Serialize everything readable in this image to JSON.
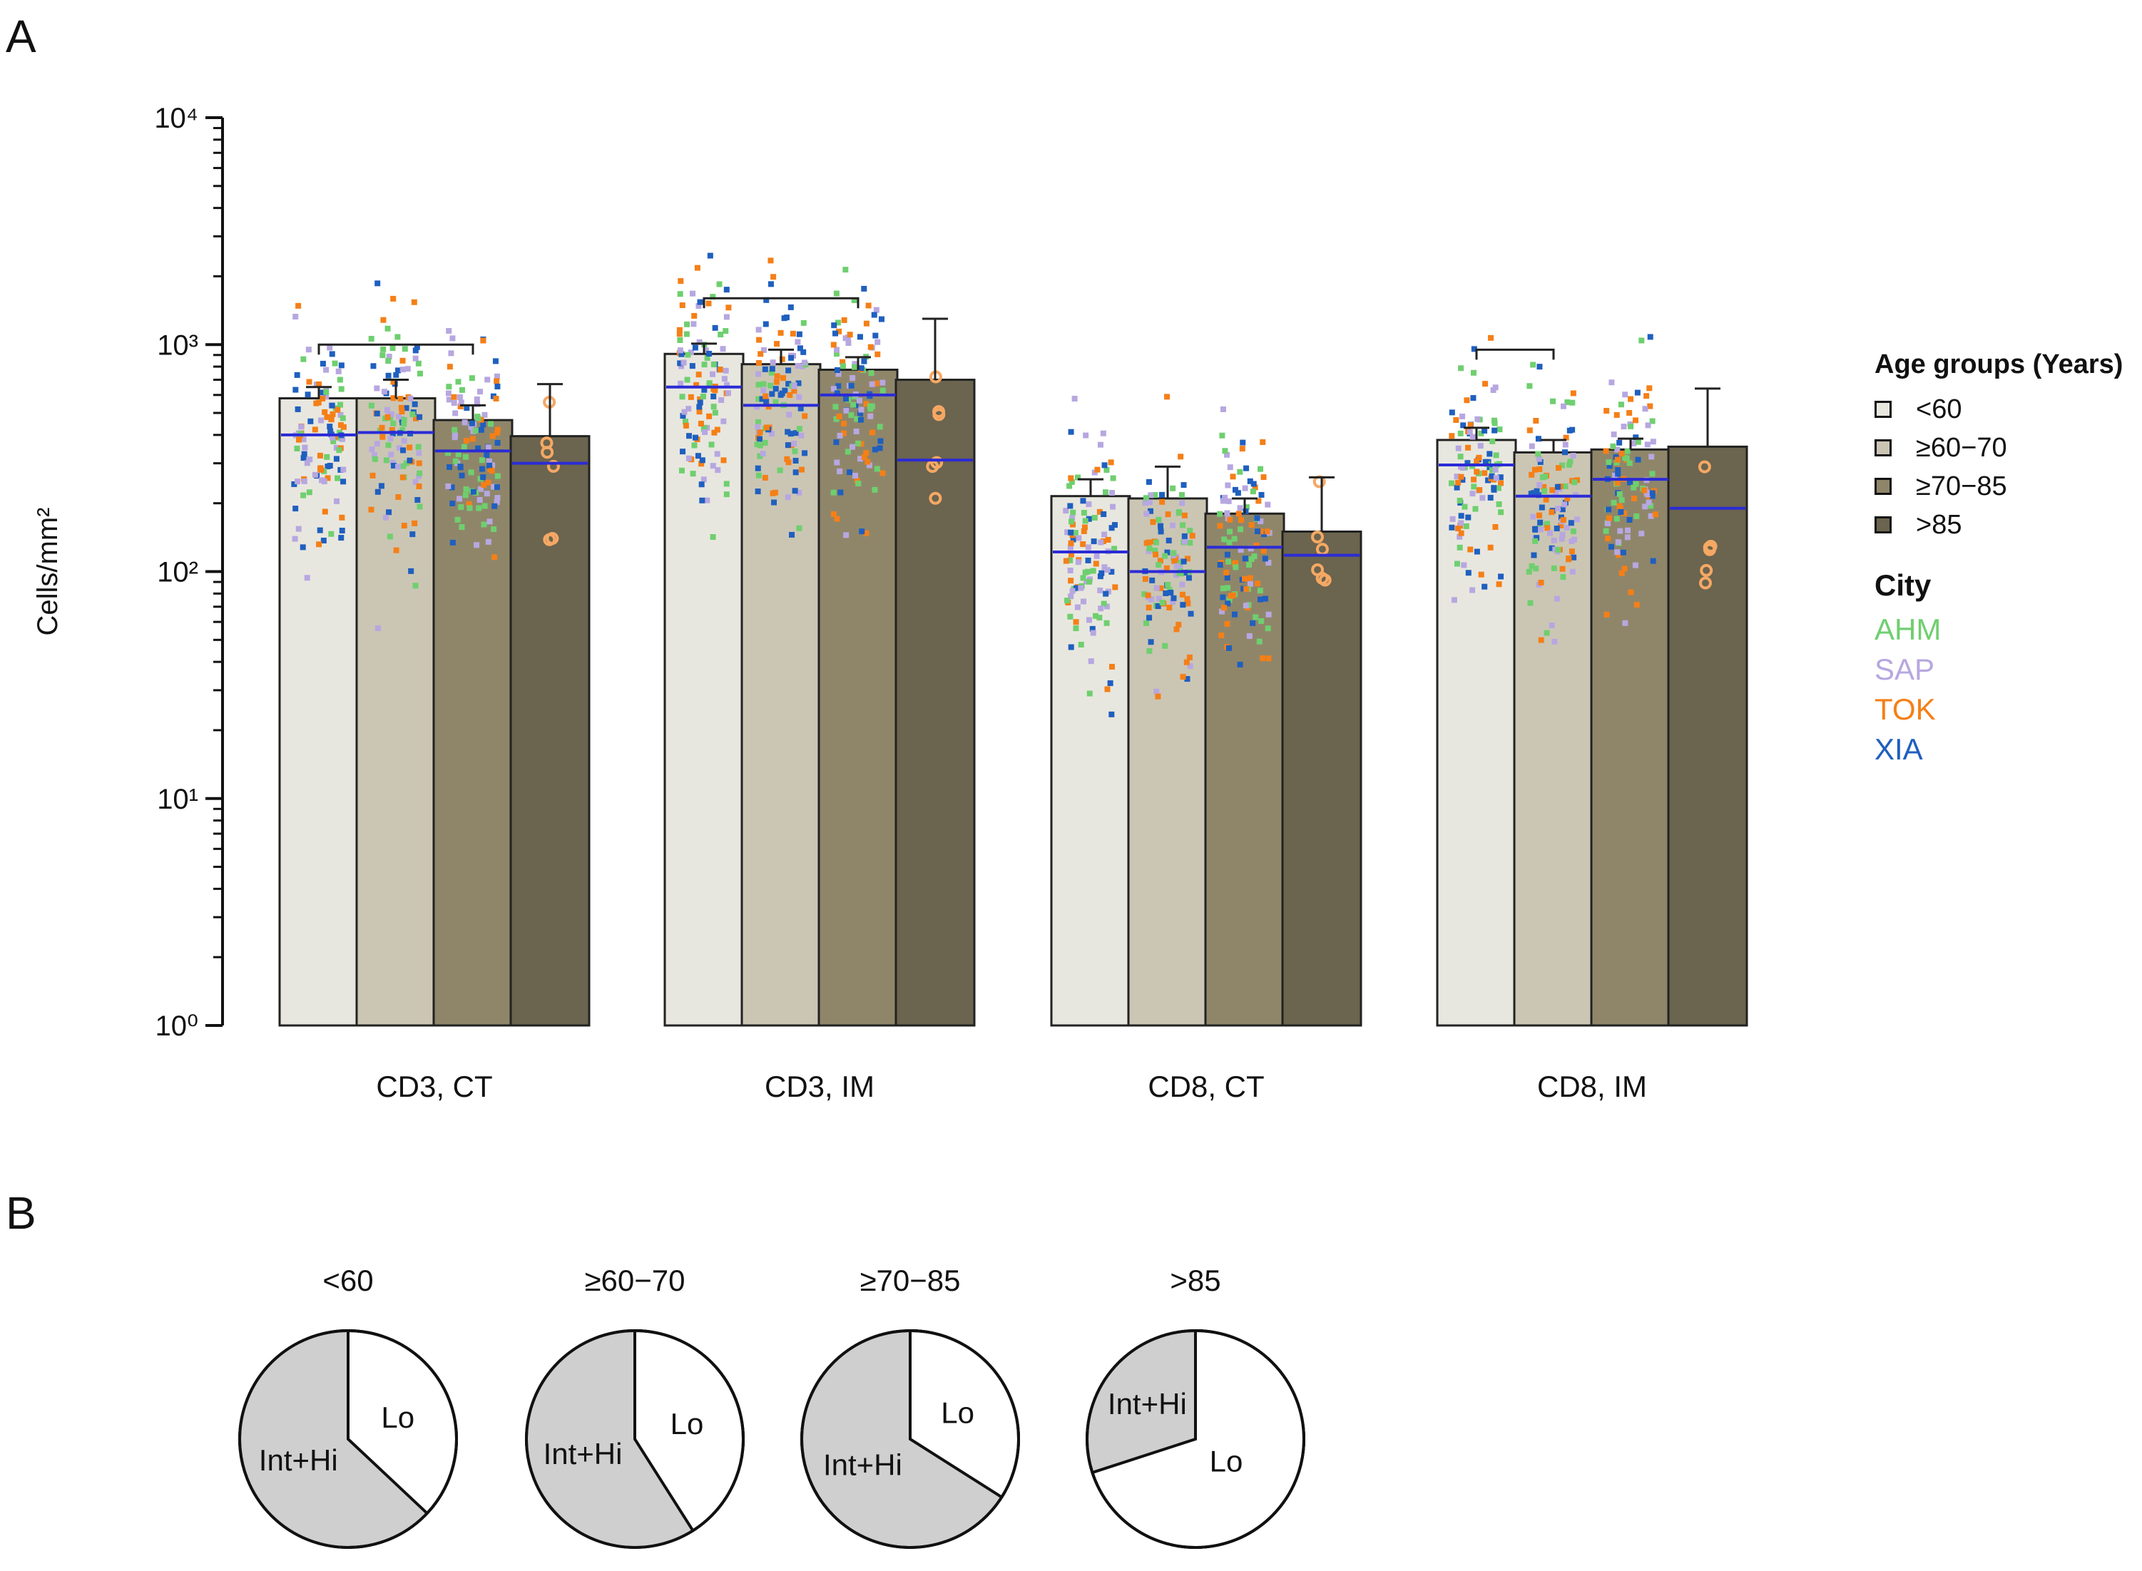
{
  "panel_labels": {
    "a": "A",
    "b": "B"
  },
  "legend": {
    "age_title": "Age groups (Years)",
    "age_groups": [
      {
        "label": "<60",
        "color": "#e8e7df"
      },
      {
        "label": "≥60−70",
        "color": "#cbc6b4"
      },
      {
        "label": "≥70−85",
        "color": "#8f866a"
      },
      {
        "label": ">85",
        "color": "#6b644e"
      }
    ],
    "city_title": "City",
    "cities": [
      {
        "label": "AHM",
        "color": "#6fcf6f"
      },
      {
        "label": "SAP",
        "color": "#b7a7e0"
      },
      {
        "label": "TOK",
        "color": "#f57f17"
      },
      {
        "label": "XIA",
        "color": "#1f5fbf"
      }
    ]
  },
  "chart_data": [
    {
      "type": "bar",
      "scale": "log",
      "ylabel": "Cells/mm²",
      "ylim": [
        1,
        10000
      ],
      "ytick_labels": [
        "10⁰",
        "10¹",
        "10²",
        "10³",
        "10⁴"
      ],
      "categories": [
        "CD3, CT",
        "CD3, IM",
        "CD8, CT",
        "CD8, IM"
      ],
      "series": [
        {
          "name": "<60",
          "values": [
            580,
            910,
            215,
            380
          ],
          "medians": [
            400,
            650,
            122,
            295
          ],
          "error_upper": [
            650,
            1010,
            255,
            430
          ]
        },
        {
          "name": "≥60−70",
          "values": [
            580,
            820,
            210,
            335
          ],
          "medians": [
            410,
            540,
            100,
            215
          ],
          "error_upper": [
            700,
            950,
            290,
            380
          ]
        },
        {
          "name": "≥70−85",
          "values": [
            465,
            775,
            180,
            345
          ],
          "medians": [
            340,
            600,
            128,
            255
          ],
          "error_upper": [
            540,
            880,
            210,
            385
          ]
        },
        {
          "name": ">85",
          "values": [
            395,
            700,
            150,
            355
          ],
          "medians": [
            300,
            310,
            118,
            190
          ],
          "error_upper": [
            670,
            1300,
            260,
            640
          ]
        }
      ],
      "significance_brackets": [
        {
          "category": "CD3, CT",
          "between": [
            "<60",
            "≥70−85"
          ],
          "y": 1000
        },
        {
          "category": "CD3, IM",
          "between": [
            "<60",
            "≥70−85"
          ],
          "y": 1600
        },
        {
          "category": "CD8, IM",
          "between": [
            "<60",
            "≥60−70"
          ],
          "y": 950
        }
      ],
      "scatter_note": "Individual patient values overlaid on each bar, colored by city (AHM, SAP, TOK, XIA)."
    },
    {
      "type": "pie",
      "title": "Panel B",
      "pies": [
        {
          "group": "<60",
          "slices": [
            {
              "label": "Lo",
              "value": 37
            },
            {
              "label": "Int+Hi",
              "value": 63
            }
          ]
        },
        {
          "group": "≥60−70",
          "slices": [
            {
              "label": "Lo",
              "value": 41
            },
            {
              "label": "Int+Hi",
              "value": 59
            }
          ]
        },
        {
          "group": "≥70−85",
          "slices": [
            {
              "label": "Lo",
              "value": 34
            },
            {
              "label": "Int+Hi",
              "value": 66
            }
          ]
        },
        {
          "group": ">85",
          "slices": [
            {
              "label": "Lo",
              "value": 70
            },
            {
              "label": "Int+Hi",
              "value": 30
            }
          ]
        }
      ]
    }
  ]
}
